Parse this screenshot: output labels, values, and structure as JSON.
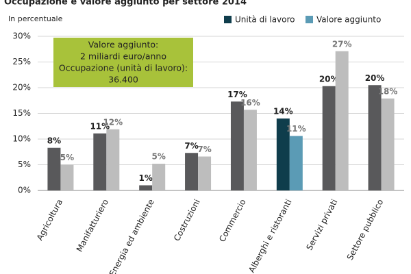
{
  "chart_data": {
    "type": "bar",
    "title": "Occupazione e valore aggiunto per settore 2014",
    "y_axis_label": "In percentuale",
    "categories": [
      "Agricoltura",
      "Manifatturiero",
      "Energia ed ambiente",
      "Costruzioni",
      "Commercio",
      "Alberghi e ristoranti",
      "Servizi privati",
      "Settore pubblico"
    ],
    "series": [
      {
        "name": "Unità di lavoro",
        "color": "#0f3d4c",
        "bar_colors": [
          "#59595b",
          "#59595b",
          "#59595b",
          "#59595b",
          "#59595b",
          "#0f3d4c",
          "#59595b",
          "#59595b"
        ],
        "values": [
          8.3,
          11.1,
          1.0,
          7.3,
          17.3,
          14.0,
          20.3,
          20.5
        ],
        "value_labels": [
          "8%",
          "11%",
          "1%",
          "7%",
          "17%",
          "14%",
          "20%",
          "20%"
        ]
      },
      {
        "name": "Valore aggiunto",
        "color": "#5b9bb5",
        "bar_colors": [
          "#bdbdbd",
          "#bdbdbd",
          "#bdbdbd",
          "#bdbdbd",
          "#bdbdbd",
          "#5b9bb5",
          "#bdbdbd",
          "#bdbdbd"
        ],
        "values": [
          5.0,
          11.9,
          5.2,
          6.6,
          15.7,
          10.6,
          27.1,
          17.9
        ],
        "value_labels": [
          "5%",
          "12%",
          "5%",
          "7%",
          "16%",
          "11%",
          "27%",
          "18%"
        ]
      }
    ],
    "ylim": [
      0,
      30
    ],
    "yticks": [
      {
        "value": 0,
        "label": "0%"
      },
      {
        "value": 5,
        "label": "5%"
      },
      {
        "value": 10,
        "label": "10%"
      },
      {
        "value": 15,
        "label": "15%"
      },
      {
        "value": 20,
        "label": "20%"
      },
      {
        "value": 25,
        "label": "25%"
      },
      {
        "value": 30,
        "label": "30%"
      }
    ],
    "grid": true,
    "legend": "top-right",
    "annotation": {
      "color": "#a8c23a",
      "lines": [
        "Valore aggiunto:",
        "2 miliardi euro/anno",
        "Occupazione (unità di lavoro):",
        "36.400"
      ]
    }
  }
}
